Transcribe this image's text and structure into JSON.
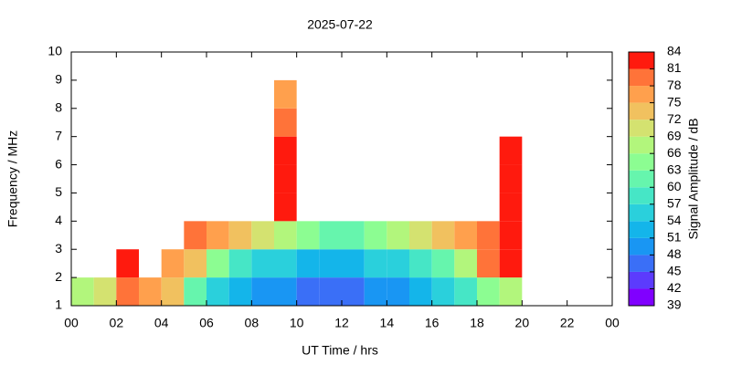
{
  "chart_data": {
    "type": "heatmap",
    "title": "2025-07-22",
    "xlabel": "UT Time / hrs",
    "ylabel": "Frequency / MHz",
    "colorbar_label": "Signal Amplitude / dB",
    "xlim": [
      0,
      24
    ],
    "ylim": [
      1,
      10
    ],
    "xticks": [
      {
        "value": 0,
        "label": "00"
      },
      {
        "value": 2,
        "label": "02"
      },
      {
        "value": 4,
        "label": "04"
      },
      {
        "value": 6,
        "label": "06"
      },
      {
        "value": 8,
        "label": "08"
      },
      10,
      12,
      14,
      16,
      18,
      20,
      22,
      {
        "value": 24,
        "label": "00"
      }
    ],
    "yticks": [
      1,
      2,
      3,
      4,
      5,
      6,
      7,
      8,
      9,
      10
    ],
    "x": [
      0,
      1,
      2,
      3,
      4,
      5,
      6,
      7,
      8,
      9,
      10,
      11,
      12,
      13,
      14,
      15,
      16,
      17,
      18,
      19,
      20,
      21,
      22,
      23
    ],
    "y": [
      1,
      2,
      3,
      4,
      5,
      6,
      7,
      8,
      9
    ],
    "z": [
      [
        66,
        69,
        78,
        75,
        72,
        60,
        54,
        51,
        48,
        48,
        45,
        45,
        45,
        48,
        48,
        51,
        54,
        57,
        63,
        66,
        null,
        null,
        null,
        null
      ],
      [
        null,
        null,
        81,
        null,
        75,
        72,
        63,
        57,
        54,
        54,
        51,
        51,
        51,
        54,
        54,
        57,
        60,
        66,
        78,
        81,
        null,
        null,
        null,
        null
      ],
      [
        null,
        null,
        null,
        null,
        null,
        78,
        75,
        72,
        69,
        66,
        63,
        60,
        60,
        63,
        66,
        69,
        72,
        75,
        78,
        81,
        null,
        null,
        null,
        null
      ],
      [
        null,
        null,
        null,
        null,
        null,
        null,
        null,
        null,
        null,
        81,
        null,
        null,
        null,
        null,
        null,
        null,
        null,
        null,
        null,
        81,
        null,
        null,
        null,
        null
      ],
      [
        null,
        null,
        null,
        null,
        null,
        null,
        null,
        null,
        null,
        81,
        null,
        null,
        null,
        null,
        null,
        null,
        null,
        null,
        null,
        84,
        null,
        null,
        null,
        null
      ],
      [
        null,
        null,
        null,
        null,
        null,
        null,
        null,
        null,
        null,
        81,
        null,
        null,
        null,
        null,
        null,
        null,
        null,
        null,
        null,
        81,
        null,
        null,
        null,
        null
      ],
      [
        null,
        null,
        null,
        null,
        null,
        null,
        null,
        null,
        null,
        78,
        null,
        null,
        null,
        null,
        null,
        null,
        null,
        null,
        null,
        null,
        null,
        null,
        null,
        null
      ],
      [
        null,
        null,
        null,
        null,
        null,
        null,
        null,
        null,
        null,
        75,
        null,
        null,
        null,
        null,
        null,
        null,
        null,
        null,
        null,
        null,
        null,
        null,
        null,
        null
      ],
      [
        null,
        null,
        null,
        null,
        null,
        null,
        null,
        null,
        null,
        null,
        null,
        null,
        null,
        null,
        null,
        null,
        null,
        null,
        null,
        null,
        null,
        null,
        null,
        null
      ]
    ],
    "clim": [
      39,
      84
    ],
    "cticks": [
      39,
      42,
      45,
      48,
      51,
      54,
      57,
      60,
      63,
      66,
      69,
      72,
      75,
      78,
      81,
      84
    ],
    "colors": [
      "#8000ff",
      "#5c3bfd",
      "#3a6ff7",
      "#1996f3",
      "#14b5ea",
      "#2ad0dc",
      "#46e6c6",
      "#66f5ad",
      "#8cfd92",
      "#b2f67c",
      "#d4e270",
      "#f1c15f",
      "#ffa04d",
      "#ff7339",
      "#ff1a0e"
    ]
  }
}
